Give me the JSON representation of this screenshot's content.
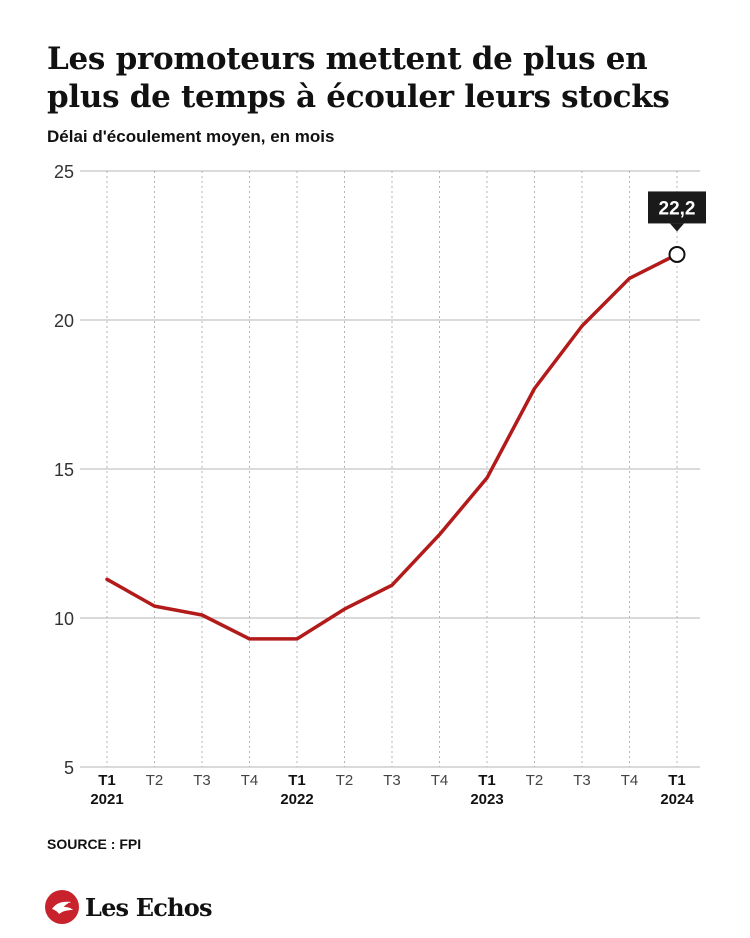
{
  "header": {
    "title": "Les promoteurs mettent de plus en plus de temps à écouler leurs stocks",
    "subtitle": "Délai d'écoulement moyen, en mois"
  },
  "footer": {
    "source": "SOURCE : FPI",
    "brand": "Les Echos"
  },
  "colors": {
    "line": "#b31b1b",
    "grid": "#b5b5b5",
    "callout_bg": "#1a1a1a",
    "brand_red": "#c8232c"
  },
  "chart_data": {
    "type": "line",
    "title": "Les promoteurs mettent de plus en plus de temps à écouler leurs stocks",
    "ylabel": "Délai d'écoulement moyen, en mois",
    "xlabel": "",
    "ylim": [
      5,
      25
    ],
    "yticks": [
      5,
      10,
      15,
      20,
      25
    ],
    "grid": true,
    "categories": [
      {
        "q": "T1",
        "year": "2021"
      },
      {
        "q": "T2",
        "year": ""
      },
      {
        "q": "T3",
        "year": ""
      },
      {
        "q": "T4",
        "year": ""
      },
      {
        "q": "T1",
        "year": "2022"
      },
      {
        "q": "T2",
        "year": ""
      },
      {
        "q": "T3",
        "year": ""
      },
      {
        "q": "T4",
        "year": ""
      },
      {
        "q": "T1",
        "year": "2023"
      },
      {
        "q": "T2",
        "year": ""
      },
      {
        "q": "T3",
        "year": ""
      },
      {
        "q": "T4",
        "year": ""
      },
      {
        "q": "T1",
        "year": "2024"
      }
    ],
    "series": [
      {
        "values": [
          11.3,
          10.4,
          10.1,
          9.3,
          9.3,
          10.3,
          11.1,
          12.8,
          14.7,
          17.7,
          19.8,
          21.4,
          22.2
        ]
      }
    ],
    "annotations": [
      {
        "index": 12,
        "text": "22,2"
      }
    ]
  }
}
